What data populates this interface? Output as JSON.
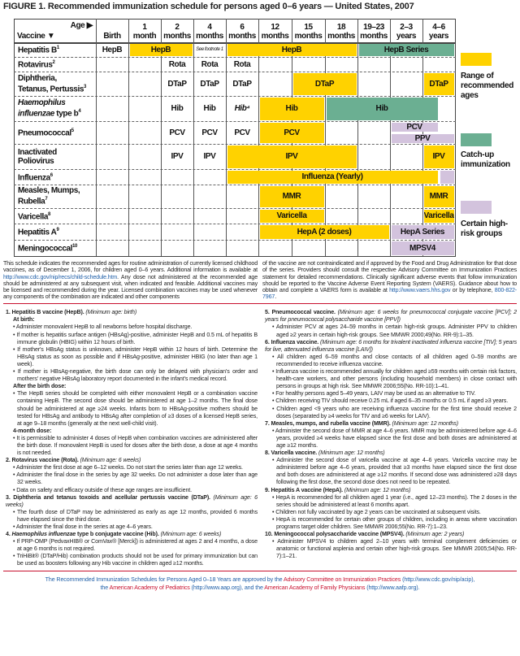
{
  "title": "FIGURE 1. Recommended immunization schedule for persons aged 0–6 years — United States, 2007",
  "colors": {
    "routine": "#FFD200",
    "catchup": "#6BAF92",
    "highrisk": "#D3C3DD",
    "rule": "#C8102E",
    "link": "#1F5FA8"
  },
  "header": {
    "age_label": "Age ▶",
    "vaccine_label": "Vaccine ▼",
    "ages": [
      {
        "key": "birth",
        "l1": "",
        "l2": "Birth"
      },
      {
        "key": "1m",
        "l1": "1",
        "l2": "month"
      },
      {
        "key": "2m",
        "l1": "2",
        "l2": "months"
      },
      {
        "key": "4m",
        "l1": "4",
        "l2": "months"
      },
      {
        "key": "6m",
        "l1": "6",
        "l2": "months"
      },
      {
        "key": "12m",
        "l1": "12",
        "l2": "months"
      },
      {
        "key": "15m",
        "l1": "15",
        "l2": "months"
      },
      {
        "key": "18m",
        "l1": "18",
        "l2": "months"
      },
      {
        "key": "19-23m",
        "l1": "19–23",
        "l2": "months"
      },
      {
        "key": "2-3y",
        "l1": "2–3",
        "l2": "years"
      },
      {
        "key": "4-6y",
        "l1": "4–6",
        "l2": "years"
      }
    ]
  },
  "vaccines": [
    {
      "name": [
        "Hepatitis B"
      ],
      "fn": "1",
      "marks": [
        {
          "type": "text",
          "from": "birth",
          "to": "birth",
          "label": "HepB"
        },
        {
          "type": "routine",
          "from": "1m",
          "to": "2m",
          "label": "HepB"
        },
        {
          "type": "note",
          "from": "4m",
          "to": "4m",
          "label": "See footnote 1"
        },
        {
          "type": "routine",
          "from": "6m",
          "to": "18m",
          "label": "HepB"
        },
        {
          "type": "catchup",
          "from": "19-23m",
          "to": "4-6y",
          "label": "HepB Series"
        }
      ]
    },
    {
      "name": [
        "Rotavirus"
      ],
      "fn": "2",
      "marks": [
        {
          "type": "text",
          "from": "2m",
          "to": "2m",
          "label": "Rota"
        },
        {
          "type": "text",
          "from": "4m",
          "to": "4m",
          "label": "Rota"
        },
        {
          "type": "text",
          "from": "6m",
          "to": "6m",
          "label": "Rota"
        }
      ]
    },
    {
      "name": [
        "Diphtheria,",
        "Tetanus, Pertussis"
      ],
      "fn": "3",
      "marks": [
        {
          "type": "text",
          "from": "2m",
          "to": "2m",
          "label": "DTaP"
        },
        {
          "type": "text",
          "from": "4m",
          "to": "4m",
          "label": "DTaP"
        },
        {
          "type": "text",
          "from": "6m",
          "to": "6m",
          "label": "DTaP"
        },
        {
          "type": "routine",
          "from": "15m",
          "to": "18m",
          "label": "DTaP"
        },
        {
          "type": "routine",
          "from": "4-6y",
          "to": "4-6y",
          "label": "DTaP"
        }
      ]
    },
    {
      "name": [
        "Haemophilus",
        "influenzae type b"
      ],
      "italic_part": "Haemophilus influenzae",
      "fn": "4",
      "marks": [
        {
          "type": "text",
          "from": "2m",
          "to": "2m",
          "label": "Hib"
        },
        {
          "type": "text",
          "from": "4m",
          "to": "4m",
          "label": "Hib"
        },
        {
          "type": "text",
          "from": "6m",
          "to": "6m",
          "label": "Hib⁴",
          "italic": true
        },
        {
          "type": "routine",
          "from": "12m",
          "to": "15m",
          "label": "Hib"
        },
        {
          "type": "catchup",
          "from": "18m",
          "to": "4-6y",
          "end_partial": true,
          "label": "Hib"
        }
      ]
    },
    {
      "name": [
        "Pneumococcal"
      ],
      "fn": "5",
      "marks": [
        {
          "type": "text",
          "from": "2m",
          "to": "2m",
          "label": "PCV"
        },
        {
          "type": "text",
          "from": "4m",
          "to": "4m",
          "label": "PCV"
        },
        {
          "type": "text",
          "from": "6m",
          "to": "6m",
          "label": "PCV"
        },
        {
          "type": "routine",
          "from": "12m",
          "to": "15m",
          "label": "PCV"
        },
        {
          "type": "highrisk",
          "from": "2-3y",
          "to": "4-6y",
          "end_partial": true,
          "half": "top",
          "label": "PCV"
        },
        {
          "type": "highrisk",
          "from": "2-3y",
          "to": "4-6y",
          "half": "bottom",
          "label": "PPV"
        }
      ]
    },
    {
      "name": [
        "Inactivated",
        "Poliovirus"
      ],
      "fn": "",
      "marks": [
        {
          "type": "text",
          "from": "2m",
          "to": "2m",
          "label": "IPV"
        },
        {
          "type": "text",
          "from": "4m",
          "to": "4m",
          "label": "IPV"
        },
        {
          "type": "routine",
          "from": "6m",
          "to": "18m",
          "label": "IPV"
        },
        {
          "type": "routine",
          "from": "4-6y",
          "to": "4-6y",
          "label": "IPV"
        }
      ]
    },
    {
      "name": [
        "Influenza"
      ],
      "fn": "6",
      "marks": [
        {
          "type": "routine",
          "from": "6m",
          "to": "4-6y",
          "end_partial": true,
          "label": "Influenza (Yearly)"
        },
        {
          "type": "highrisk",
          "from": "4-6y",
          "to": "4-6y",
          "start_partial": true,
          "label": ""
        }
      ]
    },
    {
      "name": [
        "Measles, Mumps,",
        "Rubella"
      ],
      "fn": "7",
      "marks": [
        {
          "type": "routine",
          "from": "12m",
          "to": "15m",
          "label": "MMR"
        },
        {
          "type": "routine",
          "from": "4-6y",
          "to": "4-6y",
          "label": "MMR"
        }
      ]
    },
    {
      "name": [
        "Varicella"
      ],
      "fn": "8",
      "marks": [
        {
          "type": "routine",
          "from": "12m",
          "to": "15m",
          "label": "Varicella"
        },
        {
          "type": "routine",
          "from": "4-6y",
          "to": "4-6y",
          "label": "Varicella"
        }
      ]
    },
    {
      "name": [
        "Hepatitis A"
      ],
      "fn": "9",
      "marks": [
        {
          "type": "routine",
          "from": "12m",
          "to": "19-23m",
          "label": "HepA (2 doses)"
        },
        {
          "type": "highrisk",
          "from": "2-3y",
          "to": "4-6y",
          "label": "HepA Series"
        }
      ]
    },
    {
      "name": [
        "Meningococcal"
      ],
      "fn": "10",
      "marks": [
        {
          "type": "highrisk",
          "from": "2-3y",
          "to": "4-6y",
          "label": "MPSV4"
        }
      ]
    }
  ],
  "legend": [
    {
      "type": "routine",
      "label": "Range of recommended ages"
    },
    {
      "type": "catchup",
      "label": "Catch-up immunization"
    },
    {
      "type": "highrisk",
      "label": "Certain high-risk groups"
    }
  ],
  "intro": {
    "left_a": "This schedule indicates the recommended ages for routine administration of currently licensed childhood vaccines, as of December 1, 2006, for children aged 0–6 years. Additional information is available at ",
    "left_link": "http://www.cdc.gov/nip/recs/child-schedule.htm",
    "left_b": ". Any dose not administered at the recommended age should be administered at any subsequent visit, when indicated and feasible. Additional vaccines may be licensed and recommended during the year. Licensed combination vaccines may be used whenever any components of the combination are indicated and other components",
    "right_a": "of the vaccine are not contraindicated and if approved by the Food and Drug Administration for that dose of the series. Providers should consult the respective Advisory Committee on Immunization Practices statement for detailed recommendations. Clinically significant adverse events that follow immunization should be reported to the Vaccine Adverse Event Reporting System (VAERS). Guidance about how to obtain and complete a VAERS form is available at ",
    "right_link": "http://www.vaers.hhs.gov",
    "right_b": " or by telephone, ",
    "right_phone": "800-822-7967",
    "right_c": "."
  },
  "notes_left": [
    {
      "num": "1.",
      "title": "Hepatitis B vaccine (HepB).",
      "min_age": "(Minimum age: birth)",
      "blocks": [
        {
          "sub": "At birth:"
        },
        {
          "b": "Administer monovalent HepB to all newborns before hospital discharge."
        },
        {
          "b": "If mother is hepatitis surface antigen (HBsAg)-positive, administer HepB and 0.5 mL of hepatitis B immune globulin (HBIG) within 12 hours of birth."
        },
        {
          "b": "If mother's HBsAg status is unknown, administer HepB within 12 hours of birth. Determine the HBsAg status as soon as possible and if HBsAg-positive, administer HBIG (no later than age 1 week)."
        },
        {
          "b": "If mother is HBsAg-negative, the birth dose can only be delayed with physician's order and mothers' negative HBsAg laboratory report documented in the infant's medical record."
        },
        {
          "sub": "After the birth dose:"
        },
        {
          "b": "The HepB series should be completed with either monovalent HepB or a combination vaccine containing HepB. The second dose should be administered at age 1–2 months. The final dose should be administered at age ≥24 weeks. Infants born to HBsAg-positive mothers should be tested for HBsAg and antibody to HBsAg after completion of ≥3 doses of a licensed HepB series, at age 9–18 months (generally at the next well-child visit)."
        },
        {
          "sub": "4-month dose:"
        },
        {
          "b": "It is permissible to administer 4 doses of HepB when combination vaccines are administered after the birth dose. If monovalent HepB is used for doses after the birth dose, a dose at age 4 months is not needed."
        }
      ]
    },
    {
      "num": "2.",
      "title": "Rotavirus vaccine (Rota).",
      "min_age": "(Minimum age: 6 weeks)",
      "blocks": [
        {
          "b": "Administer the first dose at age 6–12 weeks. Do not start the series later than age 12 weeks."
        },
        {
          "b": "Administer the final dose in the series by age 32 weeks. Do not administer a dose later than age 32 weeks."
        },
        {
          "b": "Data on safety and efficacy outside of these age ranges are insufficient."
        }
      ]
    },
    {
      "num": "3.",
      "title": "Diphtheria and tetanus toxoids and acellular pertussis vaccine (DTaP).",
      "min_age": "(Minimum age: 6 weeks)",
      "blocks": [
        {
          "b": "The fourth dose of DTaP may be administered as early as age 12 months, provided 6 months have elapsed since the third dose."
        },
        {
          "b": "Administer the final dose in the series at age 4–6 years."
        }
      ]
    },
    {
      "num": "4.",
      "title_italic": "Haemophilus influenzae",
      "title": " type b conjugate vaccine (Hib).",
      "min_age": "(Minimum age: 6 weeks)",
      "blocks": [
        {
          "b": "If PRP-OMP (PedvaxHIB® or ComVax® [Merck]) is administered at ages 2 and 4 months, a dose at age 6 months is not required."
        },
        {
          "b": "TriHiBit® (DTaP/Hib) combination products should not be used for primary immunization but can be used as boosters following any Hib vaccine in children aged ≥12 months."
        }
      ]
    }
  ],
  "notes_right": [
    {
      "num": "5.",
      "title": "Pneumococcal vaccine.",
      "min_age": "(Minimum age: 6 weeks for pneumococcal conjugate vaccine [PCV]; 2 years for pneumococcal polysaccharide vaccine [PPV])",
      "blocks": [
        {
          "b": "Administer PCV at ages 24–59 months in certain high-risk groups. Administer PPV to children aged ≥2 years in certain high-risk groups. See MMWR 2000;49(No. RR-9):1–35."
        }
      ]
    },
    {
      "num": "6.",
      "title": "Influenza vaccine.",
      "min_age": "(Minimum age: 6 months for trivalent inactivated influenza vaccine [TIV]; 5 years for live, attenuated influenza vaccine [LAIV])",
      "blocks": [
        {
          "b": "All children aged 6–59 months and close contacts of all children aged 0–59 months are recommended to receive influenza vaccine."
        },
        {
          "b": "Influenza vaccine is recommended annually for children aged ≥59 months with certain risk factors, health-care workers, and other persons (including household members) in close contact with persons in groups at high risk. See MMWR 2006;55(No. RR-10):1–41."
        },
        {
          "b": "For healthy persons aged 5–49 years, LAIV may be used as an alternative to TIV."
        },
        {
          "b": "Children receiving TIV should receive 0.25 mL if aged 6–35 months or 0.5 mL if aged ≥3 years."
        },
        {
          "b": "Children aged <9 years who are receiving influenza vaccine for the first time should receive 2 doses (separated by ≥4 weeks for TIV and ≥6 weeks for LAIV)."
        }
      ]
    },
    {
      "num": "7.",
      "title": "Measles, mumps, and rubella vaccine (MMR).",
      "min_age": "(Minimum age: 12 months)",
      "blocks": [
        {
          "b": "Administer the second dose of MMR at age 4–6 years. MMR may be administered before age 4–6 years, provided ≥4 weeks have elapsed since the first dose and both doses are administered at age ≥12 months."
        }
      ]
    },
    {
      "num": "8.",
      "title": "Varicella vaccine.",
      "min_age": "(Minimum age: 12 months)",
      "blocks": [
        {
          "b": "Administer the second dose of varicella vaccine at age 4–6 years. Varicella vaccine may be administered before age 4–6 years, provided that ≥3 months have elapsed since the first dose and both doses are administered at age ≥12 months. If second dose was administered ≥28 days following the first dose, the second dose does not need to be repeated."
        }
      ]
    },
    {
      "num": "9.",
      "title": "Hepatitis A vaccine (HepA).",
      "min_age": "(Minimum age: 12 months)",
      "blocks": [
        {
          "b": "HepA is recommended for all children aged 1 year (i.e., aged 12–23 months). The 2 doses in the series should be administered at least 6 months apart."
        },
        {
          "b": "Children not fully vaccinated by age 2 years can be vaccinated at subsequent visits."
        },
        {
          "b": "HepA is recommended for certain other groups of children, including in areas where vaccination programs target older children. See MMWR 2006;55(No. RR-7):1–23."
        }
      ]
    },
    {
      "num": "10.",
      "title": "Meningococcal polysaccharide vaccine (MPSV4).",
      "min_age": "(Minimum age: 2 years)",
      "blocks": [
        {
          "b": "Administer MPSV4 to children aged 2–10 years with terminal complement deficiencies or anatomic or functional asplenia and certain other high-risk groups. See MMWR 2005;54(No. RR-7):1–21."
        }
      ]
    }
  ],
  "footer": {
    "a": "The Recommended Immunization Schedules for Persons Aged 0–18 Years are approved by the ",
    "acip": "Advisory Committee on Immunization Practices",
    "acip_url": " (http://www.cdc.gov/nip/acip),",
    "b": "the ",
    "aap": "American Academy of Pediatrics",
    "aap_url": " (http://www.aap.org), and the ",
    "aafp": "American Academy of Family Physicians",
    "aafp_url": " (http://www.aafp.org)."
  }
}
